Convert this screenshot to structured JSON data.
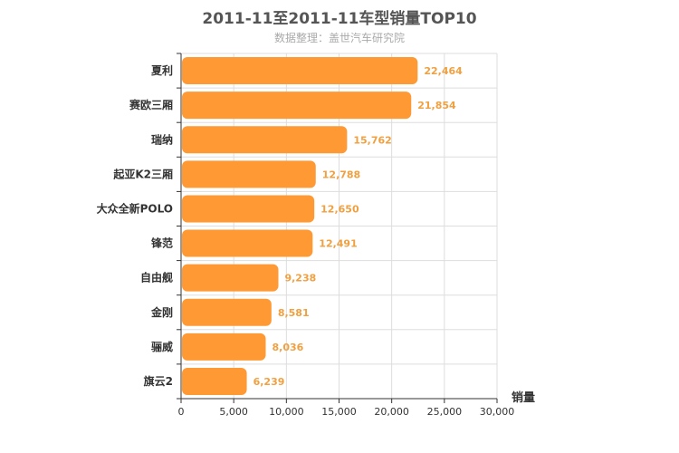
{
  "chart_data": {
    "type": "bar",
    "orientation": "horizontal",
    "title": "2011-11至2011-11车型销量TOP10",
    "subtitle": "数据整理：盖世汽车研究院",
    "xlabel": "销量",
    "ylabel": "",
    "xlim": [
      0,
      30000
    ],
    "x_ticks": [
      "0",
      "5,000",
      "10,000",
      "15,000",
      "20,000",
      "25,000",
      "30,000"
    ],
    "categories": [
      "夏利",
      "赛欧三厢",
      "瑞纳",
      "起亚K2三厢",
      "大众全新POLO",
      "锋范",
      "自由舰",
      "金刚",
      "骊威",
      "旗云2"
    ],
    "values": [
      22464,
      21854,
      15762,
      12788,
      12650,
      12491,
      9238,
      8581,
      8036,
      6239
    ],
    "value_labels": [
      "22,464",
      "21,854",
      "15,762",
      "12,788",
      "12,650",
      "12,491",
      "9,238",
      "8,581",
      "8,036",
      "6,239"
    ],
    "bar_color": "#ff9933",
    "label_color": "#f0a040",
    "grid": true,
    "legend": "none"
  }
}
